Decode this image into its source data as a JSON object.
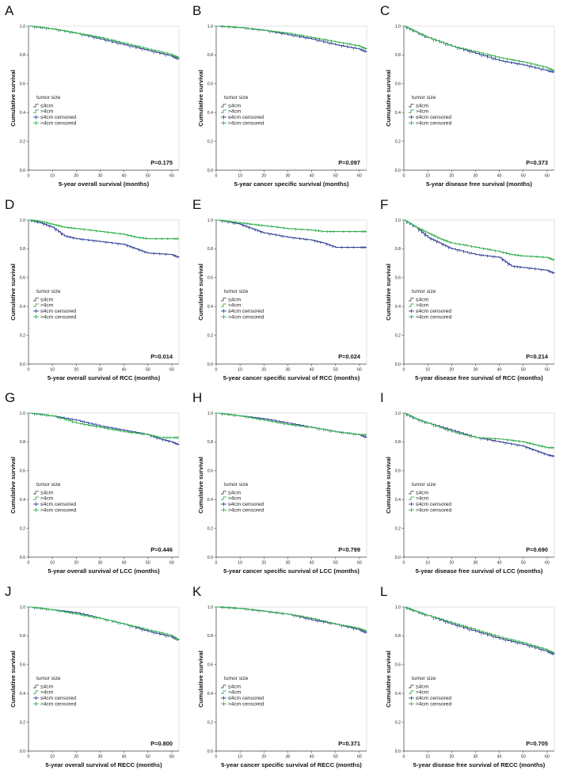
{
  "chart_data": [
    {
      "panel": "A",
      "type": "line",
      "xlabel": "5-year overall survival (months)",
      "ylabel": "Cumulative survival",
      "p_value": "P=0.175",
      "xlim": [
        0,
        63
      ],
      "ylim": [
        0,
        1.0
      ],
      "series": [
        {
          "name": "≤4cm",
          "x": [
            0,
            10,
            20,
            30,
            40,
            50,
            60,
            63
          ],
          "values": [
            1.0,
            0.98,
            0.95,
            0.91,
            0.87,
            0.83,
            0.79,
            0.77
          ]
        },
        {
          "name": ">4cm",
          "x": [
            0,
            10,
            20,
            30,
            40,
            50,
            60,
            63
          ],
          "values": [
            1.0,
            0.98,
            0.95,
            0.92,
            0.88,
            0.84,
            0.8,
            0.78
          ]
        }
      ]
    },
    {
      "panel": "B",
      "type": "line",
      "xlabel": "5-year cancer specific survival (months)",
      "ylabel": "Cumulative survival",
      "p_value": "P=0.097",
      "xlim": [
        0,
        63
      ],
      "ylim": [
        0,
        1.0
      ],
      "series": [
        {
          "name": "≤4cm",
          "x": [
            0,
            10,
            20,
            30,
            40,
            50,
            60,
            63
          ],
          "values": [
            1.0,
            0.99,
            0.97,
            0.94,
            0.91,
            0.87,
            0.84,
            0.82
          ]
        },
        {
          "name": ">4cm",
          "x": [
            0,
            10,
            20,
            30,
            40,
            50,
            60,
            63
          ],
          "values": [
            1.0,
            0.99,
            0.97,
            0.95,
            0.92,
            0.89,
            0.86,
            0.84
          ]
        }
      ]
    },
    {
      "panel": "C",
      "type": "line",
      "xlabel": "5-year disease free survival (months)",
      "ylabel": "Cumulative survival",
      "p_value": "P=0.373",
      "xlim": [
        0,
        63
      ],
      "ylim": [
        0,
        1.0
      ],
      "series": [
        {
          "name": "≤4cm",
          "x": [
            0,
            5,
            10,
            20,
            30,
            40,
            50,
            60,
            63
          ],
          "values": [
            1.0,
            0.96,
            0.92,
            0.86,
            0.81,
            0.76,
            0.73,
            0.69,
            0.68
          ]
        },
        {
          "name": ">4cm",
          "x": [
            0,
            5,
            10,
            20,
            30,
            40,
            50,
            60,
            63
          ],
          "values": [
            1.0,
            0.96,
            0.92,
            0.86,
            0.82,
            0.78,
            0.75,
            0.71,
            0.69
          ]
        }
      ]
    },
    {
      "panel": "D",
      "type": "line",
      "xlabel": "5-year overall survival of RCC (months)",
      "ylabel": "Cumulative survival",
      "p_value": "P=0.014",
      "xlim": [
        0,
        63
      ],
      "ylim": [
        0,
        1.0
      ],
      "series": [
        {
          "name": "≤4cm",
          "x": [
            0,
            5,
            10,
            15,
            20,
            30,
            40,
            45,
            50,
            60,
            63
          ],
          "values": [
            1.0,
            0.98,
            0.95,
            0.89,
            0.87,
            0.85,
            0.83,
            0.8,
            0.77,
            0.76,
            0.74
          ]
        },
        {
          "name": ">4cm",
          "x": [
            0,
            5,
            10,
            15,
            20,
            30,
            40,
            45,
            50,
            60,
            63
          ],
          "values": [
            1.0,
            0.99,
            0.97,
            0.95,
            0.94,
            0.92,
            0.9,
            0.88,
            0.87,
            0.87,
            0.87
          ]
        }
      ]
    },
    {
      "panel": "E",
      "type": "line",
      "xlabel": "5-year cancer specific survival of RCC (months)",
      "ylabel": "Cumulative survival",
      "p_value": "P=0.024",
      "xlim": [
        0,
        63
      ],
      "ylim": [
        0,
        1.0
      ],
      "series": [
        {
          "name": "≤4cm",
          "x": [
            0,
            10,
            15,
            20,
            30,
            40,
            45,
            50,
            60,
            63
          ],
          "values": [
            1.0,
            0.97,
            0.94,
            0.91,
            0.88,
            0.86,
            0.84,
            0.81,
            0.81,
            0.81
          ]
        },
        {
          "name": ">4cm",
          "x": [
            0,
            10,
            15,
            20,
            30,
            40,
            45,
            50,
            60,
            63
          ],
          "values": [
            1.0,
            0.98,
            0.97,
            0.96,
            0.94,
            0.93,
            0.92,
            0.92,
            0.92,
            0.92
          ]
        }
      ]
    },
    {
      "panel": "F",
      "type": "line",
      "xlabel": "5-year disease free survival of RCC (months)",
      "ylabel": "Cumulative survival",
      "p_value": "P=0.214",
      "xlim": [
        0,
        63
      ],
      "ylim": [
        0,
        1.0
      ],
      "series": [
        {
          "name": "≤4cm",
          "x": [
            0,
            5,
            10,
            15,
            20,
            30,
            40,
            45,
            50,
            60,
            63
          ],
          "values": [
            1.0,
            0.95,
            0.88,
            0.84,
            0.8,
            0.76,
            0.74,
            0.68,
            0.67,
            0.65,
            0.63
          ]
        },
        {
          "name": ">4cm",
          "x": [
            0,
            5,
            10,
            15,
            20,
            30,
            40,
            45,
            50,
            60,
            63
          ],
          "values": [
            1.0,
            0.95,
            0.91,
            0.87,
            0.84,
            0.81,
            0.78,
            0.76,
            0.75,
            0.74,
            0.72
          ]
        }
      ]
    },
    {
      "panel": "G",
      "type": "line",
      "xlabel": "5-year overall survival of LCC (months)",
      "ylabel": "Cumulative survival",
      "p_value": "P=0.446",
      "xlim": [
        0,
        63
      ],
      "ylim": [
        0,
        1.0
      ],
      "series": [
        {
          "name": "≤4cm",
          "x": [
            0,
            10,
            20,
            30,
            40,
            50,
            55,
            60,
            63
          ],
          "values": [
            1.0,
            0.98,
            0.95,
            0.91,
            0.88,
            0.85,
            0.82,
            0.8,
            0.78
          ]
        },
        {
          "name": ">4cm",
          "x": [
            0,
            10,
            20,
            30,
            40,
            50,
            55,
            60,
            63
          ],
          "values": [
            1.0,
            0.98,
            0.93,
            0.9,
            0.87,
            0.85,
            0.83,
            0.83,
            0.83
          ]
        }
      ]
    },
    {
      "panel": "H",
      "type": "line",
      "xlabel": "5-year cancer specific survival of LCC (months)",
      "ylabel": "Cumulative survival",
      "p_value": "P=0.799",
      "xlim": [
        0,
        63
      ],
      "ylim": [
        0,
        1.0
      ],
      "series": [
        {
          "name": "≤4cm",
          "x": [
            0,
            10,
            20,
            30,
            40,
            50,
            60,
            63
          ],
          "values": [
            1.0,
            0.98,
            0.96,
            0.93,
            0.9,
            0.87,
            0.85,
            0.83
          ]
        },
        {
          "name": ">4cm",
          "x": [
            0,
            10,
            20,
            30,
            40,
            50,
            60,
            63
          ],
          "values": [
            1.0,
            0.98,
            0.95,
            0.92,
            0.9,
            0.87,
            0.85,
            0.85
          ]
        }
      ]
    },
    {
      "panel": "I",
      "type": "line",
      "xlabel": "5-year disease free survival of LCC (months)",
      "ylabel": "Cumulative survival",
      "p_value": "P=0.690",
      "xlim": [
        0,
        63
      ],
      "ylim": [
        0,
        1.0
      ],
      "series": [
        {
          "name": "≤4cm",
          "x": [
            0,
            5,
            10,
            20,
            30,
            40,
            50,
            55,
            60,
            63
          ],
          "values": [
            1.0,
            0.96,
            0.93,
            0.88,
            0.83,
            0.8,
            0.77,
            0.74,
            0.71,
            0.7
          ]
        },
        {
          "name": ">4cm",
          "x": [
            0,
            5,
            10,
            20,
            30,
            40,
            50,
            55,
            60,
            63
          ],
          "values": [
            1.0,
            0.96,
            0.93,
            0.87,
            0.83,
            0.82,
            0.8,
            0.78,
            0.76,
            0.76
          ]
        }
      ]
    },
    {
      "panel": "J",
      "type": "line",
      "xlabel": "5-year overall survival of RECC (months)",
      "ylabel": "Cumulative survival",
      "p_value": "P=0.800",
      "xlim": [
        0,
        63
      ],
      "ylim": [
        0,
        1.0
      ],
      "series": [
        {
          "name": "≤4cm",
          "x": [
            0,
            10,
            20,
            30,
            40,
            50,
            60,
            63
          ],
          "values": [
            1.0,
            0.98,
            0.96,
            0.92,
            0.88,
            0.83,
            0.79,
            0.77
          ]
        },
        {
          "name": ">4cm",
          "x": [
            0,
            10,
            20,
            30,
            40,
            50,
            60,
            63
          ],
          "values": [
            1.0,
            0.98,
            0.95,
            0.92,
            0.88,
            0.84,
            0.8,
            0.77
          ]
        }
      ]
    },
    {
      "panel": "K",
      "type": "line",
      "xlabel": "5-year cancer specific survival of RECC (months)",
      "ylabel": "Cumulative survival",
      "p_value": "P=0.371",
      "xlim": [
        0,
        63
      ],
      "ylim": [
        0,
        1.0
      ],
      "series": [
        {
          "name": "≤4cm",
          "x": [
            0,
            10,
            20,
            30,
            40,
            50,
            60,
            63
          ],
          "values": [
            1.0,
            0.99,
            0.97,
            0.95,
            0.91,
            0.88,
            0.84,
            0.82
          ]
        },
        {
          "name": ">4cm",
          "x": [
            0,
            10,
            20,
            30,
            40,
            50,
            60,
            63
          ],
          "values": [
            1.0,
            0.99,
            0.97,
            0.95,
            0.92,
            0.88,
            0.85,
            0.83
          ]
        }
      ]
    },
    {
      "panel": "L",
      "type": "line",
      "xlabel": "5-year disease free survival of RECC (months)",
      "ylabel": "Cumulative survival",
      "p_value": "P=0.705",
      "xlim": [
        0,
        63
      ],
      "ylim": [
        0,
        1.0
      ],
      "series": [
        {
          "name": "≤4cm",
          "x": [
            0,
            5,
            10,
            20,
            30,
            40,
            50,
            60,
            63
          ],
          "values": [
            1.0,
            0.97,
            0.94,
            0.88,
            0.83,
            0.78,
            0.74,
            0.69,
            0.67
          ]
        },
        {
          "name": ">4cm",
          "x": [
            0,
            5,
            10,
            20,
            30,
            40,
            50,
            60,
            63
          ],
          "values": [
            1.0,
            0.97,
            0.94,
            0.89,
            0.84,
            0.79,
            0.75,
            0.7,
            0.68
          ]
        }
      ]
    }
  ],
  "legend": {
    "title": "tumor size",
    "items": [
      "≤4cm",
      ">4cm",
      "≤4cm censored",
      ">4cm censored"
    ]
  },
  "axis": {
    "y_ticks": [
      "0.0",
      "0.2",
      "0.4",
      "0.6",
      "0.8",
      "1.0"
    ],
    "x_ticks": [
      "0",
      "10",
      "20",
      "30",
      "40",
      "50",
      "60"
    ]
  },
  "colors": {
    "le4": "#33449a",
    "gt4": "#2fb04a",
    "axis": "#444444"
  }
}
